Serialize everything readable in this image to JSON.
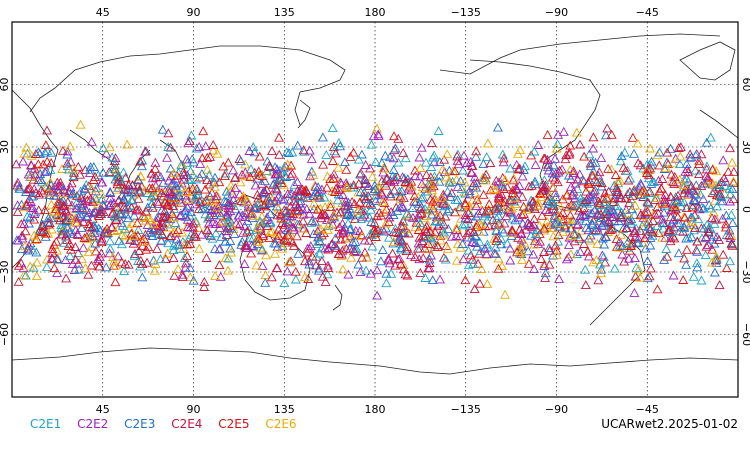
{
  "map": {
    "projection": "cylindrical-equidistant",
    "center_longitude": 180,
    "lon_ticks": [
      "45",
      "90",
      "135",
      "180",
      "−135",
      "−90",
      "−45"
    ],
    "lat_ticks": [
      "60",
      "30",
      "0",
      "−30",
      "−60"
    ],
    "lat_tick_values": [
      60,
      30,
      0,
      -30,
      -60
    ],
    "grid": "dotted",
    "marker": "open-triangle",
    "observation_lat_range": [
      -45,
      45
    ]
  },
  "legend": {
    "items": [
      {
        "label": "C2E1",
        "color": "#1aa6c8"
      },
      {
        "label": "C2E2",
        "color": "#a020c0"
      },
      {
        "label": "C2E3",
        "color": "#1f6fd6"
      },
      {
        "label": "C2E4",
        "color": "#c8143c"
      },
      {
        "label": "C2E5",
        "color": "#e01010"
      },
      {
        "label": "C2E6",
        "color": "#f0a800"
      }
    ]
  },
  "footer": {
    "product_label": "UCARwet2.2025-01-02"
  }
}
